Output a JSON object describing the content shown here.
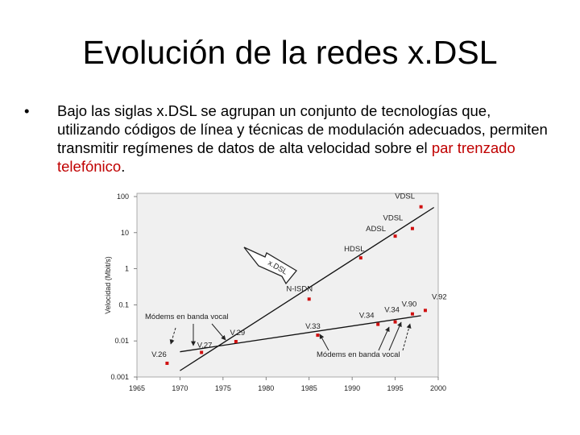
{
  "title": "Evolución de la redes x.DSL",
  "bullet": {
    "marker": "•",
    "text_before": "Bajo las siglas x.DSL se agrupan un conjunto de tecnologías que, utilizando códigos de línea y técnicas de modulación adecuados, permiten transmitir regímenes de datos de alta velocidad sobre el ",
    "highlight": "par trenzado telefónico",
    "text_after": ".",
    "highlight_color": "#c00000"
  },
  "chart_data": {
    "type": "scatter",
    "xlabel": "",
    "ylabel": "Velocidad (Mbit/s)",
    "xlim": [
      1965,
      2000
    ],
    "ylim": [
      0.001,
      100
    ],
    "yscale": "log",
    "x_ticks": [
      "1965",
      "1970",
      "1975",
      "1980",
      "1985",
      "1990",
      "1995",
      "2000"
    ],
    "y_ticks": [
      "100",
      "10",
      "1",
      "0.1",
      "0.01",
      "0.001"
    ],
    "point_color": "#d01010",
    "points": [
      {
        "label": "V.26",
        "x": 1968.5,
        "y": 0.0024
      },
      {
        "label": "V.27",
        "x": 1972.5,
        "y": 0.0048
      },
      {
        "label": "V.29",
        "x": 1976.5,
        "y": 0.0096
      },
      {
        "label": "V.33",
        "x": 1986,
        "y": 0.0144
      },
      {
        "label": "V.34",
        "x": 1993,
        "y": 0.0288
      },
      {
        "label": "V.34",
        "x": 1995,
        "y": 0.0336
      },
      {
        "label": "V.90",
        "x": 1997,
        "y": 0.056
      },
      {
        "label": "V.92",
        "x": 1998.5,
        "y": 0.07
      },
      {
        "label": "N-ISDN",
        "x": 1985,
        "y": 0.144
      },
      {
        "label": "HDSL",
        "x": 1991,
        "y": 2.0
      },
      {
        "label": "ADSL",
        "x": 1995,
        "y": 8.0
      },
      {
        "label": "VDSL",
        "x": 1997,
        "y": 13.0
      },
      {
        "label": "VDSL",
        "x": 1998,
        "y": 52.0
      }
    ],
    "trend_lines": [
      {
        "from": [
          1970,
          0.0015
        ],
        "to": [
          1999.5,
          50
        ]
      },
      {
        "from": [
          1970,
          0.005
        ],
        "to": [
          1998,
          0.05
        ]
      }
    ],
    "annotations": {
      "xdsl_arrow": "x.DSL",
      "modems_left": "Módems en banda vocal",
      "modems_right": "Módems en banda vocal"
    }
  }
}
